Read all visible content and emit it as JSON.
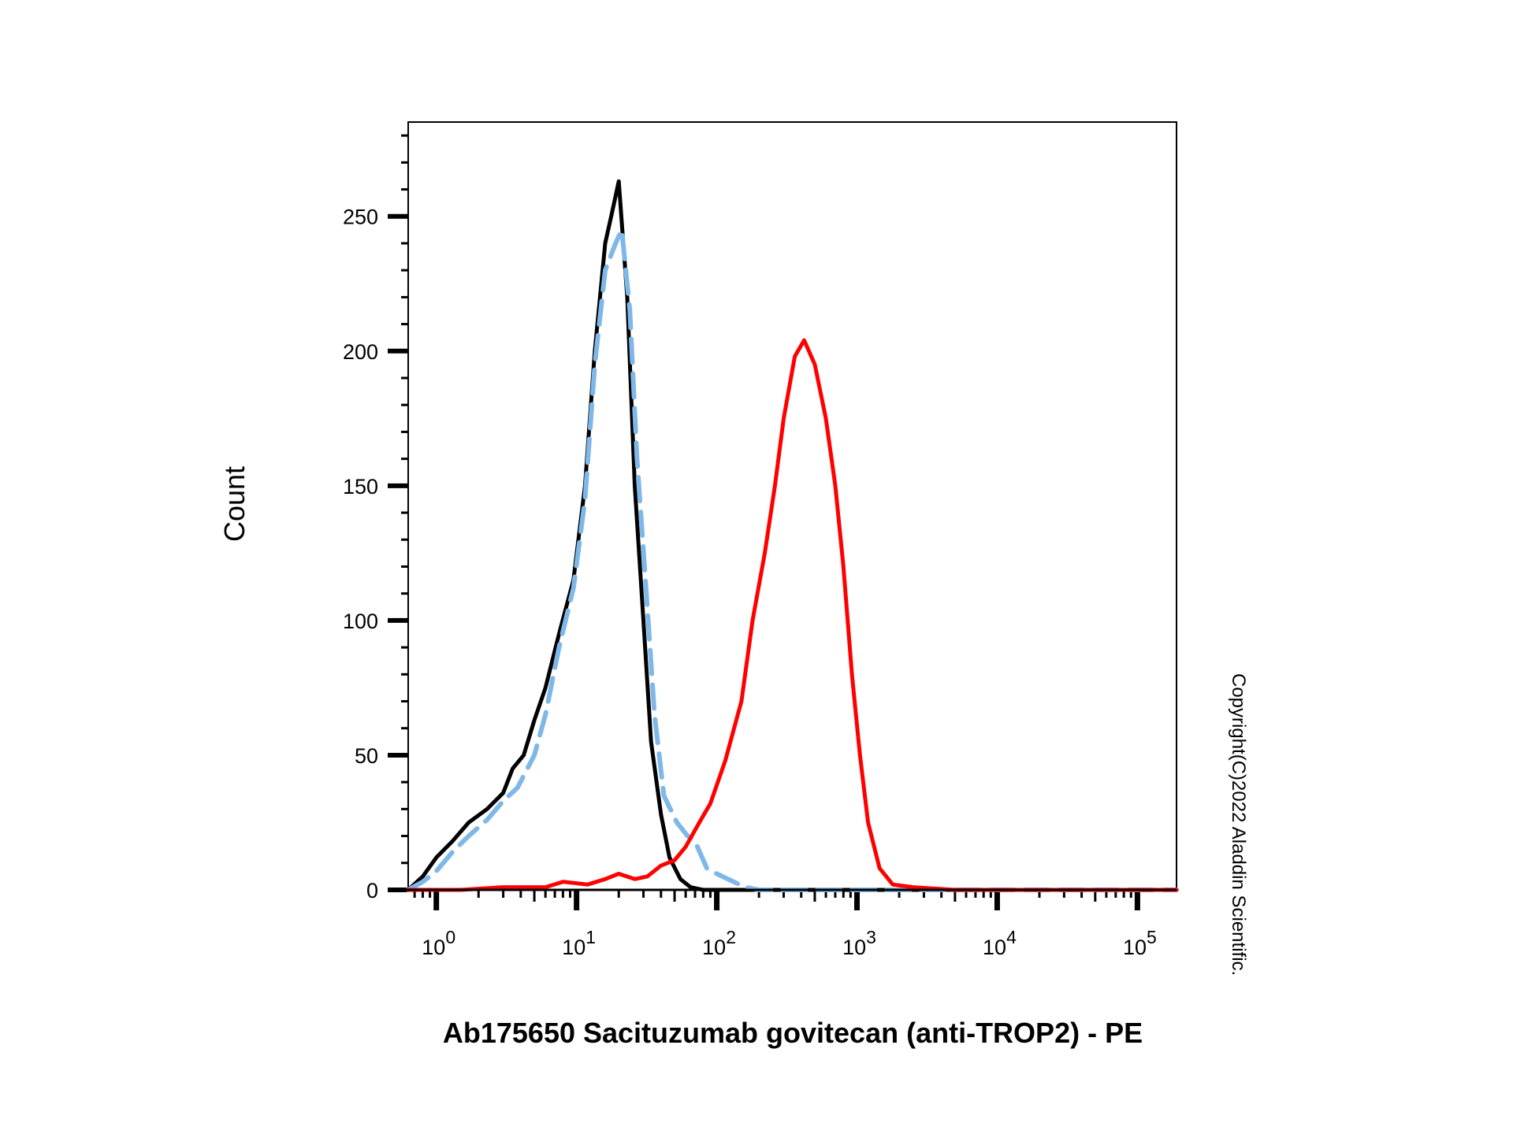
{
  "chart_data": {
    "type": "line",
    "title": "",
    "xlabel": "Ab175650 Sacituzumab govitecan (anti-TROP2) - PE",
    "ylabel": "Count",
    "x_scale": "log",
    "xlim": [
      0.63,
      190000
    ],
    "ylim": [
      0,
      285
    ],
    "y_ticks": [
      0,
      50,
      100,
      150,
      200,
      250
    ],
    "x_ticks": [
      {
        "value": 1,
        "base": "10",
        "exp": "0"
      },
      {
        "value": 10,
        "base": "10",
        "exp": "1"
      },
      {
        "value": 100,
        "base": "10",
        "exp": "2"
      },
      {
        "value": 1000,
        "base": "10",
        "exp": "3"
      },
      {
        "value": 10000,
        "base": "10",
        "exp": "4"
      },
      {
        "value": 100000,
        "base": "10",
        "exp": "5"
      }
    ],
    "grid": false,
    "series": [
      {
        "color": "#000000",
        "dash": "solid",
        "points": [
          [
            0.63,
            0
          ],
          [
            0.8,
            5
          ],
          [
            1.0,
            12
          ],
          [
            1.3,
            18
          ],
          [
            1.7,
            25
          ],
          [
            2.3,
            30
          ],
          [
            3.0,
            36
          ],
          [
            3.5,
            45
          ],
          [
            4.2,
            50
          ],
          [
            5.0,
            63
          ],
          [
            6.0,
            75
          ],
          [
            7.5,
            95
          ],
          [
            9.5,
            115
          ],
          [
            11.5,
            150
          ],
          [
            13.5,
            200
          ],
          [
            16,
            240
          ],
          [
            18,
            252
          ],
          [
            20,
            263
          ],
          [
            23,
            220
          ],
          [
            26,
            150
          ],
          [
            30,
            100
          ],
          [
            34,
            55
          ],
          [
            40,
            28
          ],
          [
            46,
            12
          ],
          [
            55,
            4
          ],
          [
            65,
            1
          ],
          [
            80,
            0
          ],
          [
            190000,
            0
          ]
        ]
      },
      {
        "color": "#7fb8e8",
        "dash": "dashed",
        "points": [
          [
            0.63,
            0
          ],
          [
            0.8,
            3
          ],
          [
            1.0,
            7
          ],
          [
            1.3,
            14
          ],
          [
            1.7,
            20
          ],
          [
            2.3,
            26
          ],
          [
            3.0,
            33
          ],
          [
            3.8,
            38
          ],
          [
            5.0,
            50
          ],
          [
            6.0,
            65
          ],
          [
            7.5,
            90
          ],
          [
            9.5,
            112
          ],
          [
            11.5,
            145
          ],
          [
            13.5,
            195
          ],
          [
            16,
            230
          ],
          [
            19,
            240
          ],
          [
            21,
            245
          ],
          [
            24,
            215
          ],
          [
            27,
            160
          ],
          [
            31,
            115
          ],
          [
            36,
            65
          ],
          [
            42,
            35
          ],
          [
            52,
            25
          ],
          [
            62,
            20
          ],
          [
            70,
            18
          ],
          [
            85,
            8
          ],
          [
            100,
            6
          ],
          [
            120,
            4
          ],
          [
            160,
            1
          ],
          [
            200,
            0
          ],
          [
            190000,
            0
          ]
        ]
      },
      {
        "color": "#ff0000",
        "dash": "solid",
        "points": [
          [
            0.63,
            0
          ],
          [
            1.5,
            0
          ],
          [
            3,
            1
          ],
          [
            6,
            1
          ],
          [
            8,
            3
          ],
          [
            12,
            2
          ],
          [
            16,
            4
          ],
          [
            20,
            6
          ],
          [
            26,
            4
          ],
          [
            32,
            5
          ],
          [
            40,
            9
          ],
          [
            50,
            11
          ],
          [
            60,
            16
          ],
          [
            75,
            25
          ],
          [
            90,
            32
          ],
          [
            115,
            48
          ],
          [
            150,
            70
          ],
          [
            180,
            100
          ],
          [
            220,
            125
          ],
          [
            260,
            150
          ],
          [
            300,
            175
          ],
          [
            360,
            198
          ],
          [
            420,
            204
          ],
          [
            500,
            195
          ],
          [
            600,
            175
          ],
          [
            700,
            150
          ],
          [
            800,
            120
          ],
          [
            920,
            80
          ],
          [
            1050,
            50
          ],
          [
            1200,
            25
          ],
          [
            1450,
            8
          ],
          [
            1800,
            2
          ],
          [
            2500,
            1
          ],
          [
            5000,
            0
          ],
          [
            190000,
            0
          ]
        ]
      }
    ]
  },
  "copyright": "Copyright(C)2022 Aladdin Scientific."
}
